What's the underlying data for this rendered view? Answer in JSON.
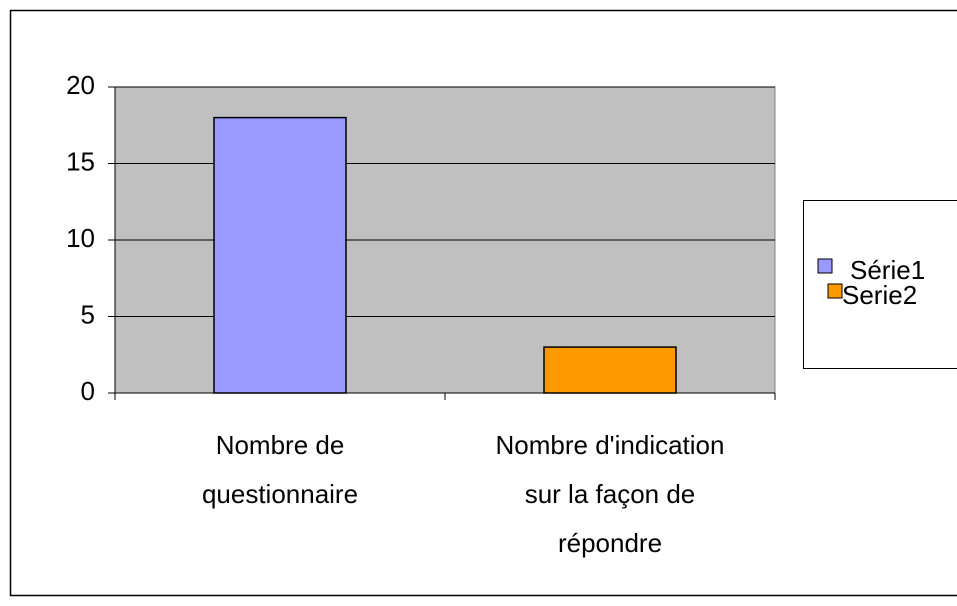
{
  "chart_data": {
    "type": "bar",
    "categories": [
      "Nombre de questionnaire",
      "Nombre d'indication sur la façon de répondre"
    ],
    "series": [
      {
        "name": "Série1",
        "color": "#9999ff",
        "values": [
          18,
          null
        ]
      },
      {
        "name": "Serie2",
        "color": "#ff9900",
        "values": [
          null,
          3
        ]
      }
    ],
    "ylim": [
      0,
      20
    ],
    "yticks": [
      0,
      5,
      10,
      15,
      20
    ],
    "grid": true,
    "plot_background": "#c0c0c0",
    "legend": "right"
  }
}
